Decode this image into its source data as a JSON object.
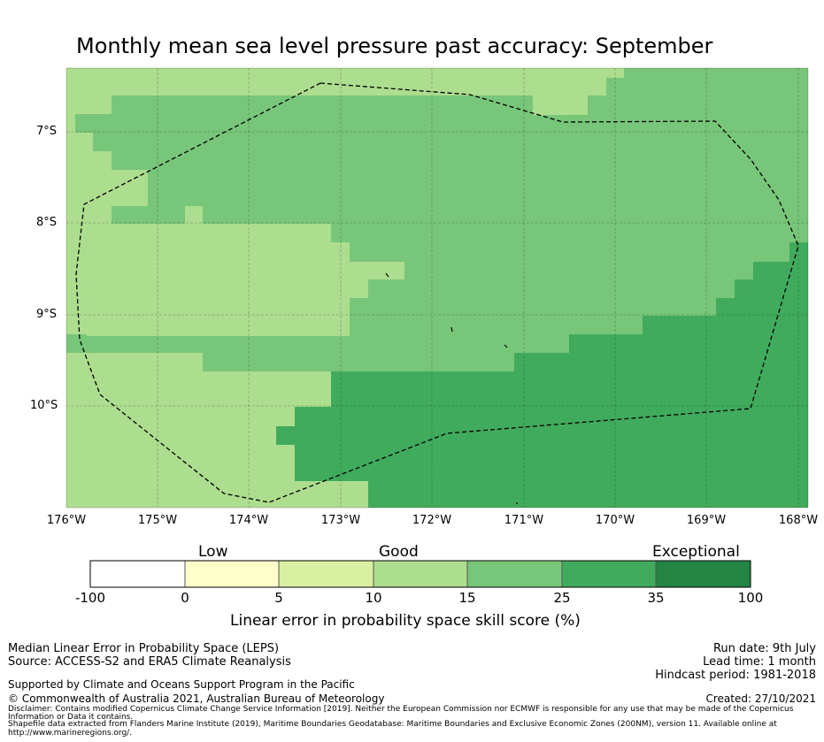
{
  "title": "Monthly mean sea level pressure past accuracy: September",
  "map": {
    "lat_ticks": [
      "7°S",
      "8°S",
      "9°S",
      "10°S"
    ],
    "lon_ticks": [
      "176°W",
      "175°W",
      "174°W",
      "173°W",
      "172°W",
      "171°W",
      "170°W",
      "169°W",
      "168°W"
    ],
    "lat_range": [
      -11.1,
      -6.3
    ],
    "lon_range": [
      -176.0,
      -167.9
    ]
  },
  "colorbar": {
    "categories": [
      "Low",
      "Good",
      "Exceptional"
    ],
    "ticks": [
      "-100",
      "0",
      "5",
      "10",
      "15",
      "25",
      "35",
      "100"
    ],
    "colors": [
      "#ffffff",
      "#ffffcc",
      "#d9f0a3",
      "#addd8e",
      "#78c679",
      "#41ab5d",
      "#238443"
    ],
    "label": "Linear error in probability space skill score (%)"
  },
  "footer": {
    "method": "Median Linear Error in Probability Space (LEPS)",
    "source": "Source: ACCESS-S2 and ERA5 Climate Reanalysis",
    "run_date": "Run date: 9th July",
    "lead_time": "Lead time: 1 month",
    "hindcast": "Hindcast period: 1981-2018",
    "support": "Supported by Climate and Oceans Support Program in the Pacific",
    "copyright": "© Commonwealth of Australia 2021, Australian Bureau of Meteorology",
    "created": "Created: 27/10/2021",
    "disclaimer_1": "Disclaimer: Contains modified Copernicus Climate Change Service Information [2019]. Neither the European Commission nor ECMWF is responsible for any use that may be made of the Copernicus",
    "disclaimer_2": "Information or Data it contains.",
    "shapefile_1": "Shapefile data extracted from Flanders Marine Institute (2019), Maritime Boundaries Geodatabase: Maritime Boundaries and Exclusive Economic Zones (200NM), version 11. Available online at",
    "shapefile_2": "http://www.marineregions.org/."
  }
}
